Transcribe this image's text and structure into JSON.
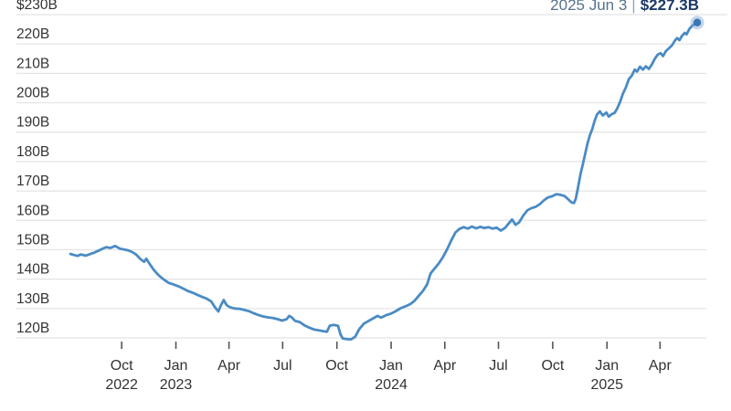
{
  "header": {
    "date_label": "2025 Jun 3",
    "separator": "|",
    "value_label": "$227.3B"
  },
  "chart_data": {
    "type": "line",
    "title": "",
    "xlabel": "",
    "ylabel": "",
    "ylim": [
      120,
      230
    ],
    "x_range": [
      "2022-07-06",
      "2025-06-03"
    ],
    "grid": "horizontal",
    "legend": "none",
    "current_point": {
      "date": "2025 Jun 3",
      "value": 227.3,
      "display": "$227.3B"
    },
    "y_ticks": [
      {
        "value": 230,
        "label": "$230B"
      },
      {
        "value": 220,
        "label": "220B"
      },
      {
        "value": 210,
        "label": "210B"
      },
      {
        "value": 200,
        "label": "200B"
      },
      {
        "value": 190,
        "label": "190B"
      },
      {
        "value": 180,
        "label": "180B"
      },
      {
        "value": 170,
        "label": "170B"
      },
      {
        "value": 160,
        "label": "160B"
      },
      {
        "value": 150,
        "label": "150B"
      },
      {
        "value": 140,
        "label": "140B"
      },
      {
        "value": 130,
        "label": "130B"
      },
      {
        "value": 120,
        "label": "120B"
      }
    ],
    "x_ticks": [
      {
        "date": "2022-10-01",
        "label": "Oct",
        "year": "2022"
      },
      {
        "date": "2023-01-01",
        "label": "Jan",
        "year": "2023"
      },
      {
        "date": "2023-04-01",
        "label": "Apr",
        "year": ""
      },
      {
        "date": "2023-07-01",
        "label": "Jul",
        "year": ""
      },
      {
        "date": "2023-10-01",
        "label": "Oct",
        "year": ""
      },
      {
        "date": "2024-01-01",
        "label": "Jan",
        "year": "2024"
      },
      {
        "date": "2024-04-01",
        "label": "Apr",
        "year": ""
      },
      {
        "date": "2024-07-01",
        "label": "Jul",
        "year": ""
      },
      {
        "date": "2024-10-01",
        "label": "Oct",
        "year": ""
      },
      {
        "date": "2025-01-01",
        "label": "Jan",
        "year": "2025"
      },
      {
        "date": "2025-04-01",
        "label": "Apr",
        "year": ""
      }
    ],
    "colors": {
      "line": "#4a8bc4",
      "marker": "#3b76b4",
      "marker_halo": "rgba(123,166,210,0.45)",
      "grid": "#e3e3e6",
      "tick": "#555555",
      "axis_text": "#333333",
      "header_date": "#56738f",
      "header_value": "#1c3a68",
      "background": "#ffffff"
    },
    "series": [
      {
        "name": "value",
        "points": [
          [
            "2022-07-06",
            148.6
          ],
          [
            "2022-07-12",
            148.2
          ],
          [
            "2022-07-18",
            147.9
          ],
          [
            "2022-07-24",
            148.4
          ],
          [
            "2022-08-01",
            148.0
          ],
          [
            "2022-08-08",
            148.5
          ],
          [
            "2022-08-15",
            149.0
          ],
          [
            "2022-08-22",
            149.6
          ],
          [
            "2022-08-29",
            150.3
          ],
          [
            "2022-09-05",
            150.9
          ],
          [
            "2022-09-12",
            150.6
          ],
          [
            "2022-09-20",
            151.3
          ],
          [
            "2022-09-28",
            150.4
          ],
          [
            "2022-10-05",
            150.1
          ],
          [
            "2022-10-12",
            149.8
          ],
          [
            "2022-10-19",
            149.2
          ],
          [
            "2022-10-26",
            148.3
          ],
          [
            "2022-11-02",
            146.8
          ],
          [
            "2022-11-08",
            145.9
          ],
          [
            "2022-11-12",
            146.9
          ],
          [
            "2022-11-17",
            145.3
          ],
          [
            "2022-11-23",
            143.6
          ],
          [
            "2022-11-29",
            142.1
          ],
          [
            "2022-12-05",
            140.9
          ],
          [
            "2022-12-12",
            139.8
          ],
          [
            "2022-12-20",
            138.7
          ],
          [
            "2022-12-28",
            138.2
          ],
          [
            "2023-01-05",
            137.6
          ],
          [
            "2023-01-13",
            136.8
          ],
          [
            "2023-01-21",
            136.0
          ],
          [
            "2023-01-29",
            135.4
          ],
          [
            "2023-02-06",
            134.7
          ],
          [
            "2023-02-14",
            134.0
          ],
          [
            "2023-02-22",
            133.4
          ],
          [
            "2023-03-02",
            132.4
          ],
          [
            "2023-03-09",
            130.2
          ],
          [
            "2023-03-14",
            129.0
          ],
          [
            "2023-03-18",
            131.0
          ],
          [
            "2023-03-23",
            132.9
          ],
          [
            "2023-03-28",
            131.2
          ],
          [
            "2023-04-03",
            130.4
          ],
          [
            "2023-04-11",
            130.0
          ],
          [
            "2023-04-19",
            129.9
          ],
          [
            "2023-04-27",
            129.5
          ],
          [
            "2023-05-05",
            129.1
          ],
          [
            "2023-05-13",
            128.4
          ],
          [
            "2023-05-21",
            127.8
          ],
          [
            "2023-05-29",
            127.3
          ],
          [
            "2023-06-06",
            127.0
          ],
          [
            "2023-06-14",
            126.8
          ],
          [
            "2023-06-22",
            126.4
          ],
          [
            "2023-06-30",
            125.9
          ],
          [
            "2023-07-08",
            126.4
          ],
          [
            "2023-07-12",
            127.5
          ],
          [
            "2023-07-16",
            127.1
          ],
          [
            "2023-07-22",
            125.8
          ],
          [
            "2023-07-30",
            125.4
          ],
          [
            "2023-08-07",
            124.3
          ],
          [
            "2023-08-15",
            123.5
          ],
          [
            "2023-08-23",
            122.9
          ],
          [
            "2023-08-31",
            122.6
          ],
          [
            "2023-09-08",
            122.3
          ],
          [
            "2023-09-14",
            122.1
          ],
          [
            "2023-09-19",
            124.2
          ],
          [
            "2023-09-26",
            124.4
          ],
          [
            "2023-10-03",
            124.1
          ],
          [
            "2023-10-07",
            121.2
          ],
          [
            "2023-10-11",
            119.8
          ],
          [
            "2023-10-18",
            119.6
          ],
          [
            "2023-10-25",
            119.5
          ],
          [
            "2023-11-01",
            120.4
          ],
          [
            "2023-11-08",
            123.0
          ],
          [
            "2023-11-16",
            124.9
          ],
          [
            "2023-11-24",
            125.8
          ],
          [
            "2023-12-02",
            126.7
          ],
          [
            "2023-12-09",
            127.5
          ],
          [
            "2023-12-15",
            126.9
          ],
          [
            "2023-12-23",
            127.7
          ],
          [
            "2023-12-31",
            128.2
          ],
          [
            "2024-01-08",
            129.0
          ],
          [
            "2024-01-17",
            130.1
          ],
          [
            "2024-01-26",
            130.8
          ],
          [
            "2024-02-03",
            131.6
          ],
          [
            "2024-02-10",
            132.7
          ],
          [
            "2024-02-17",
            134.4
          ],
          [
            "2024-02-24",
            136.0
          ],
          [
            "2024-03-02",
            138.2
          ],
          [
            "2024-03-08",
            142.0
          ],
          [
            "2024-03-15",
            143.7
          ],
          [
            "2024-03-22",
            145.4
          ],
          [
            "2024-03-29",
            147.6
          ],
          [
            "2024-04-05",
            150.2
          ],
          [
            "2024-04-12",
            153.2
          ],
          [
            "2024-04-19",
            155.9
          ],
          [
            "2024-04-26",
            157.1
          ],
          [
            "2024-05-03",
            157.7
          ],
          [
            "2024-05-10",
            157.2
          ],
          [
            "2024-05-17",
            157.9
          ],
          [
            "2024-05-24",
            157.3
          ],
          [
            "2024-05-31",
            157.8
          ],
          [
            "2024-06-07",
            157.4
          ],
          [
            "2024-06-14",
            157.7
          ],
          [
            "2024-06-21",
            157.2
          ],
          [
            "2024-06-28",
            157.5
          ],
          [
            "2024-07-05",
            156.5
          ],
          [
            "2024-07-12",
            157.4
          ],
          [
            "2024-07-19",
            159.1
          ],
          [
            "2024-07-24",
            160.3
          ],
          [
            "2024-07-30",
            158.5
          ],
          [
            "2024-08-05",
            159.3
          ],
          [
            "2024-08-12",
            161.6
          ],
          [
            "2024-08-19",
            163.4
          ],
          [
            "2024-08-26",
            164.2
          ],
          [
            "2024-09-02",
            164.6
          ],
          [
            "2024-09-09",
            165.5
          ],
          [
            "2024-09-16",
            166.8
          ],
          [
            "2024-09-23",
            167.8
          ],
          [
            "2024-09-30",
            168.2
          ],
          [
            "2024-10-07",
            168.9
          ],
          [
            "2024-10-14",
            168.7
          ],
          [
            "2024-10-21",
            168.3
          ],
          [
            "2024-10-27",
            167.2
          ],
          [
            "2024-11-02",
            166.1
          ],
          [
            "2024-11-06",
            165.9
          ],
          [
            "2024-11-09",
            167.3
          ],
          [
            "2024-11-13",
            171.2
          ],
          [
            "2024-11-17",
            175.6
          ],
          [
            "2024-11-21",
            179.0
          ],
          [
            "2024-11-25",
            182.6
          ],
          [
            "2024-11-29",
            186.2
          ],
          [
            "2024-12-03",
            188.9
          ],
          [
            "2024-12-07",
            191.0
          ],
          [
            "2024-12-11",
            193.8
          ],
          [
            "2024-12-15",
            196.0
          ],
          [
            "2024-12-20",
            197.1
          ],
          [
            "2024-12-25",
            195.7
          ],
          [
            "2024-12-31",
            196.7
          ],
          [
            "2025-01-04",
            195.3
          ],
          [
            "2025-01-09",
            196.1
          ],
          [
            "2025-01-14",
            196.6
          ],
          [
            "2025-01-18",
            197.9
          ],
          [
            "2025-01-23",
            200.2
          ],
          [
            "2025-01-28",
            203.1
          ],
          [
            "2025-02-02",
            205.2
          ],
          [
            "2025-02-07",
            208.0
          ],
          [
            "2025-02-12",
            209.2
          ],
          [
            "2025-02-17",
            211.3
          ],
          [
            "2025-02-21",
            210.6
          ],
          [
            "2025-02-26",
            212.3
          ],
          [
            "2025-03-03",
            211.3
          ],
          [
            "2025-03-08",
            212.4
          ],
          [
            "2025-03-13",
            211.5
          ],
          [
            "2025-03-18",
            213.0
          ],
          [
            "2025-03-23",
            214.9
          ],
          [
            "2025-03-28",
            216.4
          ],
          [
            "2025-04-02",
            216.9
          ],
          [
            "2025-04-06",
            215.9
          ],
          [
            "2025-04-11",
            217.6
          ],
          [
            "2025-04-16",
            218.5
          ],
          [
            "2025-04-21",
            219.5
          ],
          [
            "2025-04-26",
            221.1
          ],
          [
            "2025-04-30",
            222.0
          ],
          [
            "2025-05-04",
            221.3
          ],
          [
            "2025-05-08",
            222.7
          ],
          [
            "2025-05-13",
            223.8
          ],
          [
            "2025-05-16",
            223.3
          ],
          [
            "2025-05-21",
            225.2
          ],
          [
            "2025-05-26",
            226.3
          ],
          [
            "2025-05-30",
            226.8
          ],
          [
            "2025-06-03",
            227.3
          ]
        ]
      }
    ]
  }
}
